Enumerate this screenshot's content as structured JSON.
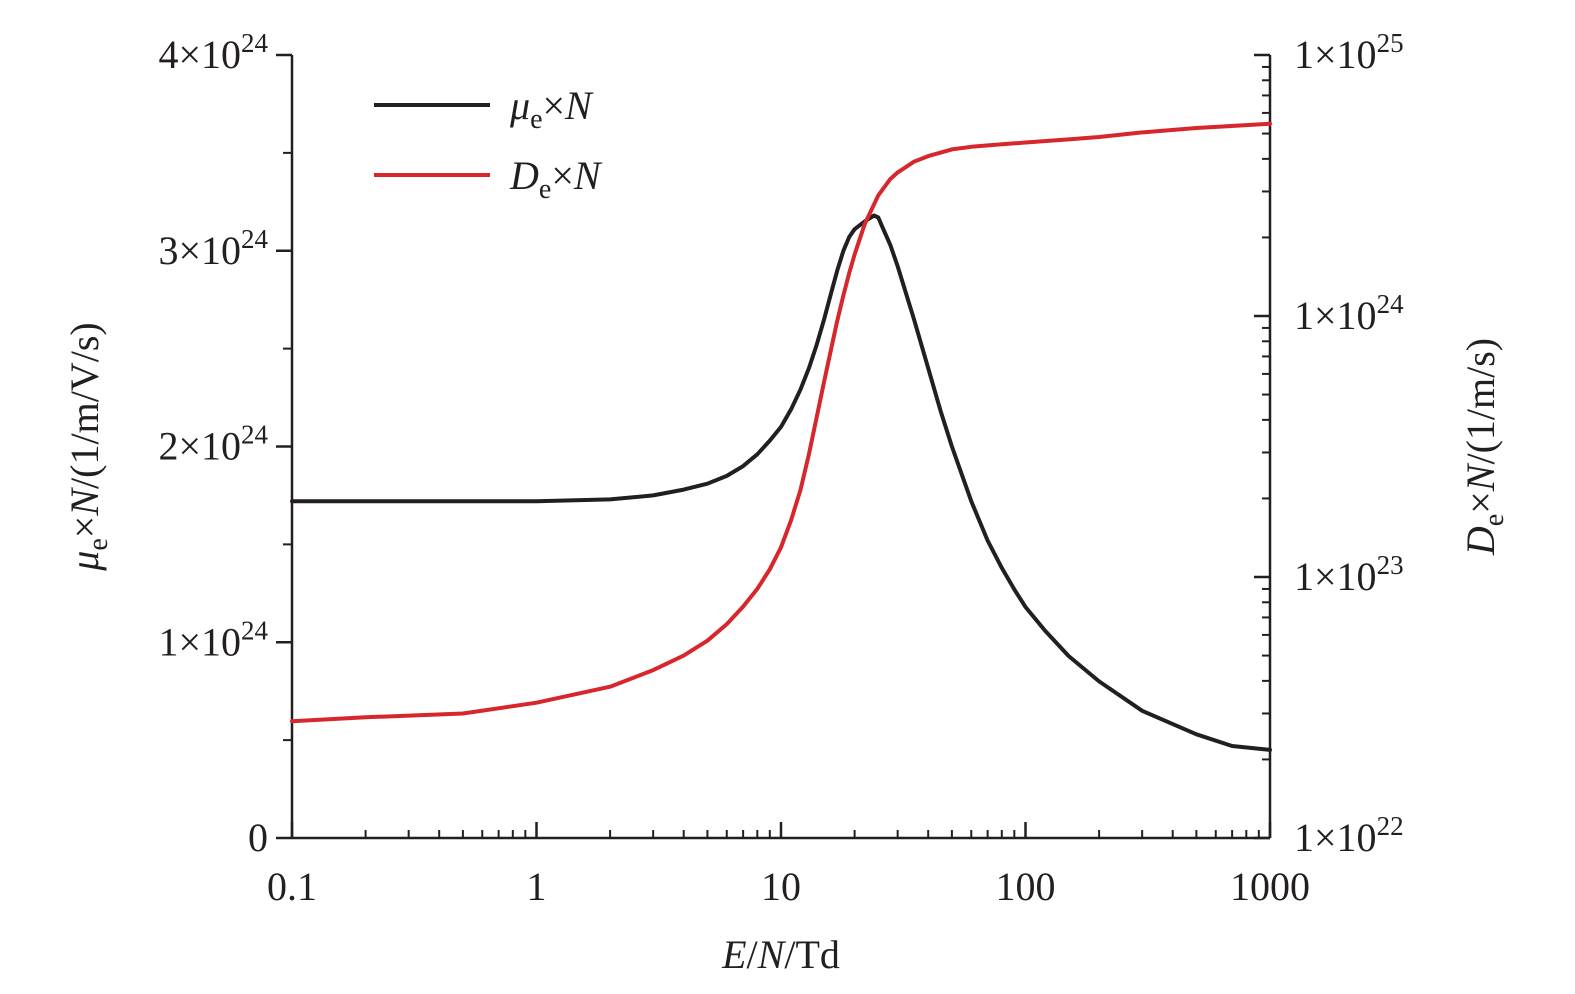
{
  "chart_data": {
    "type": "line",
    "title": "",
    "x_axis": {
      "label_parts": [
        "E",
        "/",
        "N",
        "/Td"
      ],
      "scale": "log",
      "range": [
        0.1,
        1000
      ],
      "ticks": [
        0.1,
        1,
        10,
        100,
        1000
      ],
      "tick_labels": [
        "0.1",
        "1",
        "10",
        "100",
        "1000"
      ]
    },
    "y_left": {
      "label_parts": [
        "μ",
        "e",
        "×",
        "N",
        "/(1/m/V/s)"
      ],
      "scale": "linear",
      "range": [
        0,
        4e+24
      ],
      "ticks": [
        0,
        1e+24,
        2e+24,
        3e+24,
        4e+24
      ],
      "tick_labels": [
        {
          "mant": "0",
          "exp": ""
        },
        {
          "mant": "1×10",
          "exp": "24"
        },
        {
          "mant": "2×10",
          "exp": "24"
        },
        {
          "mant": "3×10",
          "exp": "24"
        },
        {
          "mant": "4×10",
          "exp": "24"
        }
      ]
    },
    "y_right": {
      "label_parts": [
        "D",
        "e",
        "×",
        "N",
        "/(1/m/s)"
      ],
      "scale": "log",
      "range": [
        1e+22,
        1e+25
      ],
      "ticks": [
        1e+22,
        1e+23,
        1e+24,
        1e+25
      ],
      "tick_labels": [
        {
          "mant": "1×10",
          "exp": "22"
        },
        {
          "mant": "1×10",
          "exp": "23"
        },
        {
          "mant": "1×10",
          "exp": "24"
        },
        {
          "mant": "1×10",
          "exp": "25"
        }
      ]
    },
    "legend": {
      "placement": "top-left",
      "entries": [
        {
          "symbol": "μ",
          "sub": "e",
          "rest": "×N"
        },
        {
          "symbol": "D",
          "sub": "e",
          "rest": "×N"
        }
      ]
    },
    "series": [
      {
        "axis": "left",
        "color": "#231f20",
        "x": [
          0.1,
          0.2,
          0.5,
          1,
          2,
          3,
          4,
          5,
          6,
          7,
          8,
          9,
          10,
          11,
          12,
          13,
          14,
          15,
          16,
          17,
          18,
          19,
          20,
          22,
          24,
          25,
          26,
          28,
          30,
          35,
          40,
          45,
          50,
          60,
          70,
          80,
          90,
          100,
          120,
          150,
          200,
          300,
          500,
          700,
          1000
        ],
        "y": [
          1.72e+24,
          1.72e+24,
          1.72e+24,
          1.72e+24,
          1.73e+24,
          1.75e+24,
          1.78e+24,
          1.81e+24,
          1.85e+24,
          1.9e+24,
          1.96e+24,
          2.03e+24,
          2.1e+24,
          2.19e+24,
          2.29e+24,
          2.4e+24,
          2.52e+24,
          2.65e+24,
          2.78e+24,
          2.9e+24,
          3e+24,
          3.07e+24,
          3.11e+24,
          3.15e+24,
          3.18e+24,
          3.17e+24,
          3.12e+24,
          3.03e+24,
          2.92e+24,
          2.65e+24,
          2.4e+24,
          2.18e+24,
          2e+24,
          1.72e+24,
          1.52e+24,
          1.38e+24,
          1.27e+24,
          1.18e+24,
          1.06e+24,
          9.3e+23,
          8e+23,
          6.5e+23,
          5.3e+23,
          4.7e+23,
          4.5e+23
        ]
      },
      {
        "axis": "right",
        "color": "#d7262c",
        "x": [
          0.1,
          0.2,
          0.5,
          1,
          2,
          3,
          4,
          5,
          6,
          7,
          8,
          9,
          10,
          11,
          12,
          13,
          14,
          15,
          16,
          17,
          18,
          19,
          20,
          22,
          25,
          28,
          30,
          35,
          40,
          50,
          60,
          80,
          100,
          150,
          200,
          300,
          500,
          1000
        ],
        "y": [
          2.8e+22,
          2.9e+22,
          3e+22,
          3.3e+22,
          3.8e+22,
          4.4e+22,
          5e+22,
          5.7e+22,
          6.6e+22,
          7.7e+22,
          9e+22,
          1.07e+23,
          1.3e+23,
          1.65e+23,
          2.15e+23,
          2.95e+23,
          4.1e+23,
          5.6e+23,
          7.4e+23,
          9.6e+23,
          1.2e+24,
          1.46e+24,
          1.72e+24,
          2.25e+24,
          2.9e+24,
          3.35e+24,
          3.55e+24,
          3.9e+24,
          4.1e+24,
          4.35e+24,
          4.45e+24,
          4.55e+24,
          4.62e+24,
          4.75e+24,
          4.85e+24,
          5.05e+24,
          5.25e+24,
          5.45e+24
        ]
      }
    ]
  }
}
